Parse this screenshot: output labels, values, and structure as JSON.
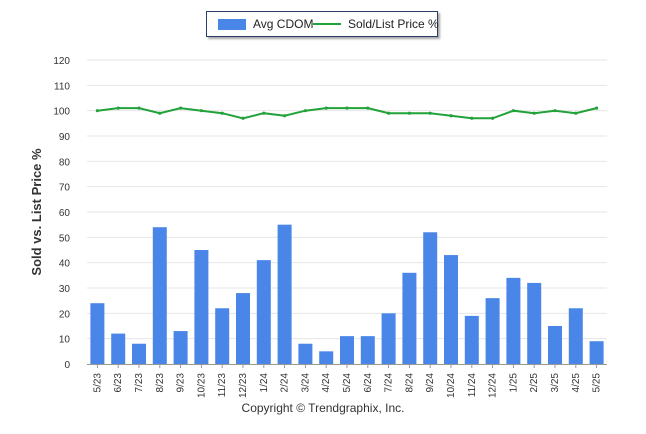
{
  "chart_data": {
    "type": "bar",
    "title": "",
    "xlabel": "",
    "ylabel": "Sold vs. List Price %",
    "ylim": [
      0,
      120
    ],
    "yticks": [
      0,
      10,
      20,
      30,
      40,
      50,
      60,
      70,
      80,
      90,
      100,
      110,
      120
    ],
    "grid": true,
    "legend_position": "top-center",
    "categories": [
      "5/23",
      "6/23",
      "7/23",
      "8/23",
      "9/23",
      "10/23",
      "11/23",
      "12/23",
      "1/24",
      "2/24",
      "3/24",
      "4/24",
      "5/24",
      "6/24",
      "7/24",
      "8/24",
      "9/24",
      "10/24",
      "11/24",
      "12/24",
      "1/25",
      "2/25",
      "3/25",
      "4/25",
      "5/25"
    ],
    "series": [
      {
        "name": "Avg CDOM",
        "type": "bar",
        "color": "#4a86e8",
        "values": [
          24,
          12,
          8,
          54,
          13,
          45,
          22,
          28,
          41,
          55,
          8,
          5,
          11,
          11,
          20,
          36,
          52,
          43,
          19,
          26,
          34,
          32,
          15,
          22,
          9
        ]
      },
      {
        "name": "Sold/List Price %",
        "type": "line",
        "color": "#22a23a",
        "values": [
          100,
          101,
          101,
          99,
          101,
          100,
          99,
          97,
          99,
          98,
          100,
          101,
          101,
          101,
          99,
          99,
          99,
          98,
          97,
          97,
          100,
          99,
          100,
          99,
          101
        ]
      }
    ]
  },
  "footer": "Copyright © Trendgraphix, Inc."
}
